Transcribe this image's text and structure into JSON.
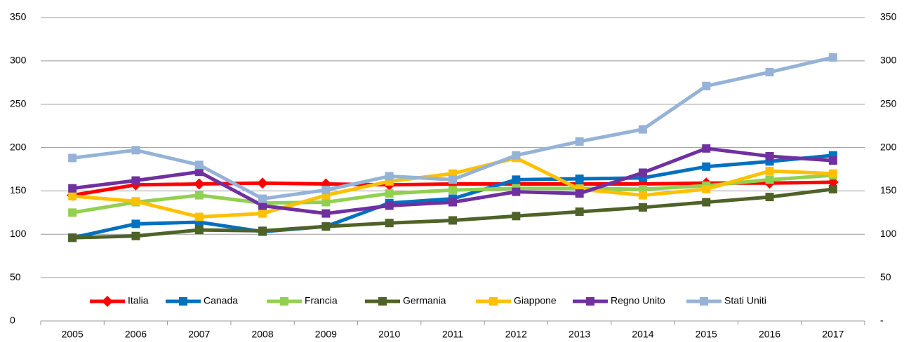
{
  "chart_data": {
    "type": "line",
    "categories": [
      "2005",
      "2006",
      "2007",
      "2008",
      "2009",
      "2010",
      "2011",
      "2012",
      "2013",
      "2014",
      "2015",
      "2016",
      "2017"
    ],
    "series": [
      {
        "name": "Italia",
        "color": "#ff0000",
        "marker": "diamond",
        "values": [
          145,
          157,
          158,
          159,
          158,
          157,
          158,
          158,
          158,
          158,
          159,
          159,
          160
        ]
      },
      {
        "name": "Canada",
        "color": "#0070c0",
        "marker": "square",
        "values": [
          96,
          112,
          114,
          103,
          109,
          136,
          141,
          163,
          164,
          165,
          178,
          184,
          191
        ]
      },
      {
        "name": "Francia",
        "color": "#92d050",
        "marker": "square",
        "values": [
          125,
          137,
          145,
          136,
          137,
          147,
          151,
          153,
          153,
          152,
          156,
          163,
          168
        ]
      },
      {
        "name": "Germania",
        "color": "#4f6228",
        "marker": "square",
        "values": [
          96,
          98,
          105,
          104,
          109,
          113,
          116,
          121,
          126,
          131,
          137,
          143,
          152
        ]
      },
      {
        "name": "Giappone",
        "color": "#ffc000",
        "marker": "square",
        "values": [
          144,
          138,
          120,
          124,
          145,
          161,
          170,
          188,
          152,
          145,
          152,
          173,
          170
        ]
      },
      {
        "name": "Regno Unito",
        "color": "#7030a0",
        "marker": "square",
        "values": [
          153,
          162,
          172,
          133,
          124,
          133,
          137,
          149,
          147,
          171,
          199,
          190,
          185
        ]
      },
      {
        "name": "Stati Uniti",
        "color": "#95b3d7",
        "marker": "square",
        "values": [
          188,
          197,
          180,
          141,
          151,
          167,
          163,
          191,
          207,
          221,
          271,
          287,
          304
        ]
      }
    ],
    "ylim": [
      0,
      350
    ],
    "yticks": [
      0,
      50,
      100,
      150,
      200,
      250,
      300,
      350
    ],
    "y2lim": [
      0,
      350
    ],
    "y2ticks": [
      {
        "value": 0,
        "label": "-"
      },
      50,
      100,
      150,
      200,
      250,
      300,
      350
    ],
    "grid": true,
    "legend": "bottom"
  }
}
